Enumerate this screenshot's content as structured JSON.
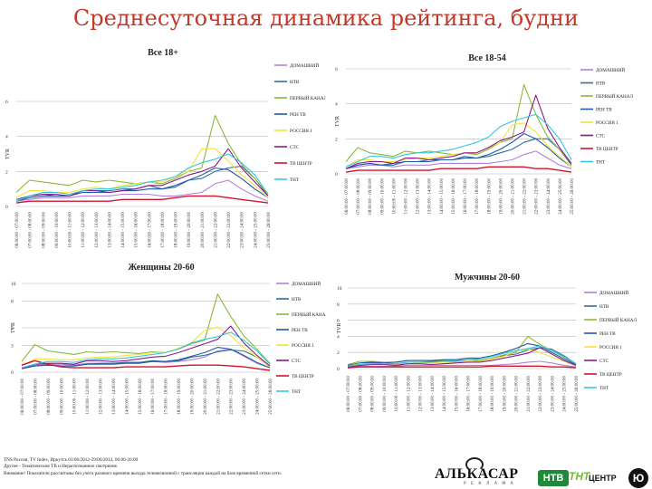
{
  "page": {
    "title": "Среднесуточная динамика рейтинга, будни",
    "footer": [
      "TNS Россия, TV Index, Иркутск 01/06/2012-29/06/2012, 06:00-26:00",
      "Другие - Тематические ТВ и Нераспознанное смотрение.",
      "Внимание! Показатели рассчитаны без учета разового времени выхода телевизионной с трансляции каждой на базе временной сетки сети."
    ],
    "logos": {
      "alkasar": "АЛЬКАСАР",
      "alkasar_sub": "Р Е К Л А М А",
      "ntv": "НТВ",
      "tnt": "ТНТ",
      "centr": "ЦЕНТР",
      "u": "Ю"
    }
  },
  "colors": {
    "ДОМАШНИЙ": "#b57edc",
    "НТВ": "#2e6f9e",
    "ПЕРВЫЙ КАНАЛ": "#8db83a",
    "РЕН ТВ": "#1f5aa6",
    "РОССИЯ 1": "#f2e33c",
    "СТС": "#8b1a8b",
    "ТВ ЦЕНТР": "#d0142c",
    "ТНТ": "#36c6e0"
  },
  "chart_data": [
    {
      "type": "line",
      "title": "Все 18+",
      "ylabel": "TVR",
      "ylim": [
        0,
        6
      ],
      "yticks": [
        0,
        2,
        4,
        6
      ],
      "categories": [
        "06:00:00 - 07:00:00",
        "07:00:00 - 08:00:00",
        "08:00:00 - 09:00:00",
        "09:00:00 - 10:00:00",
        "10:00:00 - 11:00:00",
        "11:00:00 - 12:00:00",
        "12:00:00 - 13:00:00",
        "13:00:00 - 14:00:00",
        "14:00:00 - 15:00:00",
        "15:00:00 - 16:00:00",
        "16:00:00 - 17:00:00",
        "17:00:00 - 18:00:00",
        "18:00:00 - 19:00:00",
        "19:00:00 - 20:00:00",
        "20:00:00 - 21:00:00",
        "21:00:00 - 22:00:00",
        "22:00:00 - 23:00:00",
        "23:00:00 - 24:00:00",
        "24:00:00 - 25:00:00",
        "25:00:00 - 26:00:00"
      ],
      "series": [
        {
          "name": "ДОМАШНИЙ",
          "values": [
            0.3,
            0.4,
            0.5,
            0.5,
            0.5,
            0.6,
            0.6,
            0.6,
            0.7,
            0.7,
            0.7,
            0.6,
            0.6,
            0.7,
            0.8,
            1.3,
            1.5,
            1.0,
            0.6,
            0.3
          ]
        },
        {
          "name": "НТВ",
          "values": [
            0.4,
            0.6,
            0.7,
            0.6,
            0.6,
            0.9,
            0.9,
            0.9,
            1.0,
            1.0,
            1.2,
            1.0,
            1.1,
            1.5,
            1.6,
            2.0,
            2.2,
            2.3,
            1.6,
            0.6
          ]
        },
        {
          "name": "ПЕРВЫЙ КАНАЛ",
          "values": [
            0.8,
            1.5,
            1.4,
            1.3,
            1.2,
            1.5,
            1.4,
            1.5,
            1.4,
            1.3,
            1.4,
            1.3,
            1.6,
            2.0,
            2.2,
            5.2,
            3.6,
            2.4,
            1.6,
            0.7
          ]
        },
        {
          "name": "РЕН ТВ",
          "values": [
            0.3,
            0.5,
            0.6,
            0.6,
            0.6,
            0.8,
            0.8,
            0.8,
            0.9,
            0.9,
            1.0,
            1.0,
            1.2,
            1.5,
            1.8,
            2.2,
            2.1,
            1.6,
            1.0,
            0.5
          ]
        },
        {
          "name": "РОССИЯ 1",
          "values": [
            0.5,
            0.9,
            0.9,
            0.8,
            0.8,
            1.0,
            1.1,
            1.0,
            1.2,
            1.3,
            1.4,
            1.4,
            1.7,
            2.0,
            3.3,
            3.3,
            2.6,
            1.8,
            1.2,
            0.5
          ]
        },
        {
          "name": "СТС",
          "values": [
            0.3,
            0.6,
            0.7,
            0.7,
            0.6,
            0.9,
            0.9,
            0.8,
            0.9,
            1.0,
            1.2,
            1.2,
            1.5,
            1.8,
            2.0,
            2.3,
            3.3,
            2.2,
            1.4,
            0.6
          ]
        },
        {
          "name": "ТВ ЦЕНТР",
          "values": [
            0.2,
            0.3,
            0.3,
            0.3,
            0.3,
            0.3,
            0.3,
            0.3,
            0.4,
            0.4,
            0.4,
            0.4,
            0.5,
            0.6,
            0.6,
            0.6,
            0.5,
            0.4,
            0.3,
            0.2
          ]
        },
        {
          "name": "ТНТ",
          "values": [
            0.3,
            0.6,
            0.8,
            0.8,
            0.7,
            0.9,
            1.0,
            1.0,
            1.1,
            1.2,
            1.4,
            1.5,
            1.7,
            2.2,
            2.5,
            2.7,
            3.0,
            2.5,
            1.8,
            0.7
          ]
        }
      ]
    },
    {
      "type": "line",
      "title": "Все 18-54",
      "ylabel": "TVR",
      "ylim": [
        0,
        6
      ],
      "yticks": [
        0,
        2,
        4,
        6
      ],
      "categories": [
        "06:00:00 - 07:00:00",
        "07:00:00 - 08:00:00",
        "08:00:00 - 09:00:00",
        "09:00:00 - 10:00:00",
        "10:00:00 - 11:00:00",
        "11:00:00 - 12:00:00",
        "12:00:00 - 13:00:00",
        "13:00:00 - 14:00:00",
        "14:00:00 - 15:00:00",
        "15:00:00 - 16:00:00",
        "16:00:00 - 17:00:00",
        "17:00:00 - 18:00:00",
        "18:00:00 - 19:00:00",
        "19:00:00 - 20:00:00",
        "20:00:00 - 21:00:00",
        "21:00:00 - 22:00:00",
        "22:00:00 - 23:00:00",
        "23:00:00 - 24:00:00",
        "24:00:00 - 25:00:00",
        "25:00:00 - 26:00:00"
      ],
      "series": [
        {
          "name": "ДОМАШНИЙ",
          "values": [
            0.3,
            0.4,
            0.5,
            0.5,
            0.4,
            0.5,
            0.5,
            0.5,
            0.6,
            0.6,
            0.6,
            0.6,
            0.6,
            0.7,
            0.8,
            1.1,
            1.3,
            0.9,
            0.5,
            0.3
          ]
        },
        {
          "name": "НТВ",
          "values": [
            0.3,
            0.5,
            0.6,
            0.5,
            0.5,
            0.7,
            0.7,
            0.8,
            0.8,
            0.8,
            1.0,
            0.9,
            1.0,
            1.2,
            1.4,
            1.8,
            2.0,
            2.0,
            1.4,
            0.5
          ]
        },
        {
          "name": "ПЕРВЫЙ КАНАЛ",
          "values": [
            0.7,
            1.5,
            1.2,
            1.1,
            1.0,
            1.3,
            1.2,
            1.3,
            1.2,
            1.1,
            1.2,
            1.1,
            1.4,
            1.8,
            2.0,
            5.1,
            3.4,
            2.1,
            1.4,
            0.6
          ]
        },
        {
          "name": "РЕН ТВ",
          "values": [
            0.3,
            0.5,
            0.6,
            0.5,
            0.6,
            0.7,
            0.7,
            0.7,
            0.8,
            0.8,
            0.9,
            0.9,
            1.1,
            1.4,
            1.8,
            2.3,
            2.0,
            1.5,
            0.9,
            0.4
          ]
        },
        {
          "name": "РОССИЯ 1",
          "values": [
            0.4,
            0.8,
            0.8,
            0.7,
            0.7,
            0.8,
            0.9,
            0.9,
            1.0,
            1.1,
            1.2,
            1.2,
            1.5,
            1.8,
            2.8,
            2.9,
            2.4,
            1.6,
            1.0,
            0.4
          ]
        },
        {
          "name": "СТС",
          "values": [
            0.3,
            0.6,
            0.7,
            0.7,
            0.6,
            0.9,
            0.9,
            0.8,
            0.9,
            1.0,
            1.2,
            1.2,
            1.5,
            1.9,
            2.1,
            2.4,
            4.5,
            2.6,
            1.5,
            0.6
          ]
        },
        {
          "name": "ТВ ЦЕНТР",
          "values": [
            0.1,
            0.2,
            0.2,
            0.2,
            0.2,
            0.2,
            0.2,
            0.2,
            0.3,
            0.3,
            0.3,
            0.3,
            0.4,
            0.4,
            0.4,
            0.4,
            0.3,
            0.3,
            0.2,
            0.1
          ]
        },
        {
          "name": "ТНТ",
          "values": [
            0.4,
            0.7,
            1.0,
            1.0,
            0.9,
            1.1,
            1.2,
            1.2,
            1.3,
            1.4,
            1.6,
            1.8,
            2.1,
            2.7,
            3.0,
            3.2,
            3.4,
            2.8,
            2.0,
            0.8
          ]
        }
      ]
    },
    {
      "type": "line",
      "title": "Женщины 20-60",
      "ylabel": "TVR",
      "ylim": [
        0,
        10
      ],
      "yticks": [
        0,
        3,
        5,
        8,
        10
      ],
      "categories": [
        "06:00:00 - 07:00:00",
        "07:00:00 - 08:00:00",
        "08:00:00 - 09:00:00",
        "09:00:00 - 10:00:00",
        "10:00:00 - 11:00:00",
        "11:00:00 - 12:00:00",
        "12:00:00 - 13:00:00",
        "13:00:00 - 14:00:00",
        "14:00:00 - 15:00:00",
        "15:00:00 - 16:00:00",
        "16:00:00 - 17:00:00",
        "17:00:00 - 18:00:00",
        "18:00:00 - 19:00:00",
        "19:00:00 - 20:00:00",
        "20:00:00 - 21:00:00",
        "21:00:00 - 22:00:00",
        "22:00:00 - 23:00:00",
        "23:00:00 - 24:00:00",
        "24:00:00 - 25:00:00",
        "25:00:00 - 26:00:00"
      ],
      "series": [
        {
          "name": "ДОМАШНИЙ",
          "values": [
            0.5,
            0.8,
            0.9,
            0.9,
            0.8,
            1.0,
            1.0,
            1.0,
            1.1,
            1.1,
            1.2,
            1.1,
            1.2,
            1.4,
            1.7,
            2.4,
            2.6,
            1.8,
            1.0,
            0.5
          ]
        },
        {
          "name": "НТВ",
          "values": [
            0.4,
            0.7,
            0.8,
            0.7,
            0.7,
            0.9,
            1.0,
            1.0,
            1.1,
            1.1,
            1.3,
            1.2,
            1.3,
            1.7,
            1.9,
            2.3,
            2.5,
            2.4,
            1.7,
            0.6
          ]
        },
        {
          "name": "ПЕРВЫЙ КАНАЛ",
          "values": [
            1.2,
            3.1,
            2.4,
            2.2,
            2.0,
            2.3,
            2.2,
            2.3,
            2.2,
            2.1,
            2.3,
            2.2,
            2.6,
            3.2,
            3.6,
            8.8,
            6.3,
            4.1,
            2.6,
            1.0
          ]
        },
        {
          "name": "РЕН ТВ",
          "values": [
            0.4,
            0.7,
            0.8,
            0.7,
            0.7,
            0.9,
            0.9,
            0.9,
            1.0,
            1.0,
            1.2,
            1.2,
            1.4,
            1.8,
            2.2,
            2.8,
            2.6,
            1.9,
            1.1,
            0.5
          ]
        },
        {
          "name": "РОССИЯ 1",
          "values": [
            0.7,
            1.5,
            1.5,
            1.4,
            1.4,
            1.6,
            1.7,
            1.7,
            1.9,
            2.0,
            2.2,
            2.2,
            2.7,
            3.3,
            4.7,
            5.1,
            4.1,
            2.8,
            1.7,
            0.6
          ]
        },
        {
          "name": "СТС",
          "values": [
            0.4,
            0.9,
            1.0,
            1.0,
            0.9,
            1.3,
            1.3,
            1.2,
            1.3,
            1.5,
            1.7,
            1.8,
            2.2,
            2.7,
            3.2,
            3.7,
            5.2,
            3.3,
            1.9,
            0.7
          ]
        },
        {
          "name": "ТВ ЦЕНТР",
          "values": [
            0.8,
            1.3,
            0.9,
            0.6,
            0.5,
            0.5,
            0.5,
            0.5,
            0.6,
            0.6,
            0.6,
            0.6,
            0.7,
            0.8,
            0.8,
            0.8,
            0.7,
            0.6,
            0.4,
            0.2
          ]
        },
        {
          "name": "ТНТ",
          "values": [
            0.5,
            0.9,
            1.2,
            1.2,
            1.1,
            1.4,
            1.5,
            1.5,
            1.6,
            1.8,
            2.0,
            2.2,
            2.6,
            3.3,
            3.7,
            4.0,
            4.5,
            3.6,
            2.4,
            0.9
          ]
        }
      ]
    },
    {
      "type": "line",
      "title": "Мужчины 20-60",
      "ylabel": "TVR",
      "ylim": [
        0,
        10
      ],
      "yticks": [
        0,
        2,
        4,
        6,
        8,
        10
      ],
      "categories": [
        "06:00:00 - 07:00:00",
        "07:00:00 - 08:00:00",
        "08:00:00 - 09:00:00",
        "09:00:00 - 10:00:00",
        "10:00:00 - 11:00:00",
        "11:00:00 - 12:00:00",
        "12:00:00 - 13:00:00",
        "13:00:00 - 14:00:00",
        "14:00:00 - 15:00:00",
        "15:00:00 - 16:00:00",
        "16:00:00 - 17:00:00",
        "17:00:00 - 18:00:00",
        "18:00:00 - 19:00:00",
        "19:00:00 - 20:00:00",
        "20:00:00 - 21:00:00",
        "21:00:00 - 22:00:00",
        "22:00:00 - 23:00:00",
        "23:00:00 - 24:00:00",
        "24:00:00 - 25:00:00",
        "25:00:00 - 26:00:00"
      ],
      "series": [
        {
          "name": "ДОМАШНИЙ",
          "values": [
            0.2,
            0.3,
            0.3,
            0.3,
            0.3,
            0.4,
            0.4,
            0.4,
            0.4,
            0.4,
            0.4,
            0.4,
            0.4,
            0.5,
            0.6,
            0.8,
            0.9,
            0.7,
            0.4,
            0.2
          ]
        },
        {
          "name": "НТВ",
          "values": [
            0.4,
            0.6,
            0.7,
            0.6,
            0.6,
            0.8,
            0.8,
            0.9,
            0.9,
            0.9,
            1.1,
            1.0,
            1.2,
            1.6,
            1.8,
            2.3,
            2.6,
            2.4,
            1.6,
            0.6
          ]
        },
        {
          "name": "ПЕРВЫЙ КАНАЛ",
          "values": [
            0.5,
            0.9,
            0.9,
            0.8,
            0.8,
            1.0,
            1.0,
            1.0,
            1.0,
            1.0,
            1.1,
            1.0,
            1.3,
            1.7,
            2.0,
            4.0,
            3.0,
            2.2,
            1.4,
            0.6
          ]
        },
        {
          "name": "РЕН ТВ",
          "values": [
            0.4,
            0.7,
            0.8,
            0.7,
            0.8,
            1.0,
            1.0,
            1.0,
            1.1,
            1.1,
            1.3,
            1.3,
            1.6,
            2.0,
            2.5,
            3.1,
            2.8,
            2.0,
            1.2,
            0.5
          ]
        },
        {
          "name": "РОССИЯ 1",
          "values": [
            0.3,
            0.6,
            0.6,
            0.5,
            0.5,
            0.6,
            0.7,
            0.7,
            0.8,
            0.8,
            0.9,
            0.9,
            1.2,
            1.5,
            2.2,
            2.4,
            2.0,
            1.4,
            0.9,
            0.3
          ]
        },
        {
          "name": "СТС",
          "values": [
            0.2,
            0.4,
            0.5,
            0.5,
            0.4,
            0.6,
            0.6,
            0.5,
            0.6,
            0.7,
            0.8,
            0.8,
            1.0,
            1.3,
            1.6,
            1.9,
            2.6,
            1.8,
            1.0,
            0.4
          ]
        },
        {
          "name": "ТВ ЦЕНТР",
          "values": [
            0.1,
            0.2,
            0.2,
            0.2,
            0.2,
            0.2,
            0.2,
            0.2,
            0.2,
            0.2,
            0.2,
            0.2,
            0.3,
            0.3,
            0.3,
            0.3,
            0.3,
            0.2,
            0.2,
            0.1
          ]
        },
        {
          "name": "ТНТ",
          "values": [
            0.3,
            0.5,
            0.6,
            0.6,
            0.6,
            0.8,
            0.8,
            0.8,
            0.9,
            1.0,
            1.1,
            1.2,
            1.5,
            1.9,
            2.2,
            2.5,
            2.8,
            2.2,
            1.5,
            0.6
          ]
        }
      ]
    }
  ]
}
